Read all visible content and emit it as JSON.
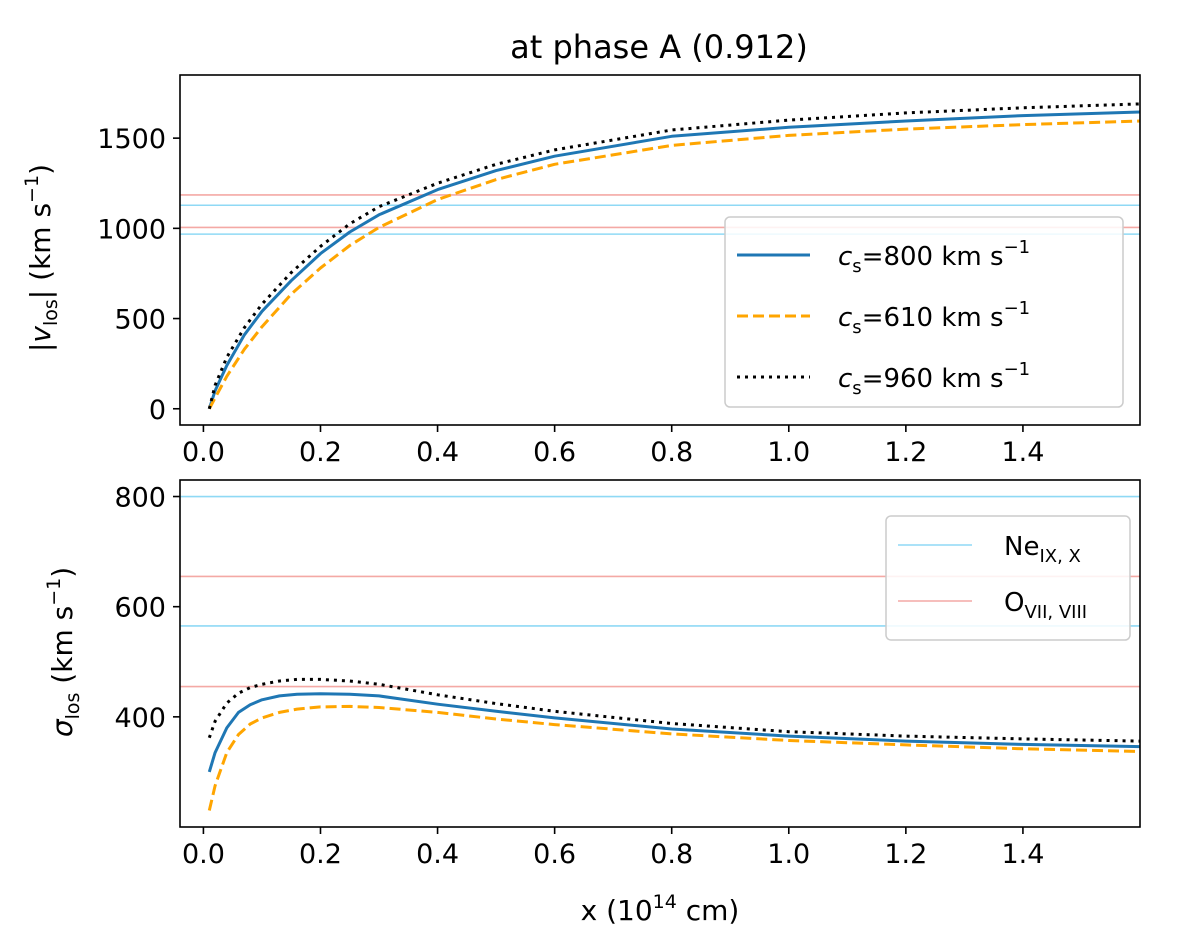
{
  "chart_data": [
    {
      "type": "line",
      "panel": "top",
      "title": "at phase A (0.912)",
      "xlabel": "",
      "ylabel_parts": {
        "open": "|",
        "var": "v",
        "sub": "los",
        "close": "| (km s",
        "sup": "−1",
        "end": ")"
      },
      "xlim": [
        -0.04,
        1.6
      ],
      "ylim": [
        -90,
        1850
      ],
      "xticks": [
        0.0,
        0.2,
        0.4,
        0.6,
        0.8,
        1.0,
        1.2,
        1.4
      ],
      "xtick_labels": [
        "0.0",
        "0.2",
        "0.4",
        "0.6",
        "0.8",
        "1.0",
        "1.2",
        "1.4"
      ],
      "yticks": [
        0,
        500,
        1000,
        1500
      ],
      "ytick_labels": [
        "0",
        "500",
        "1000",
        "1500"
      ],
      "hlines": [
        {
          "y": 1185,
          "color": "#f4a9a5",
          "group": "O"
        },
        {
          "y": 1128,
          "color": "#8fd9f5",
          "group": "Ne"
        },
        {
          "y": 1005,
          "color": "#f4a9a5",
          "group": "O"
        },
        {
          "y": 968,
          "color": "#8fd9f5",
          "group": "Ne"
        }
      ],
      "series": [
        {
          "name": "cs800",
          "color": "#1f77b4",
          "style": "solid",
          "x": [
            0.01,
            0.02,
            0.04,
            0.07,
            0.1,
            0.15,
            0.2,
            0.25,
            0.3,
            0.4,
            0.5,
            0.6,
            0.8,
            1.0,
            1.2,
            1.4,
            1.6
          ],
          "y": [
            0,
            100,
            240,
            410,
            540,
            710,
            860,
            980,
            1075,
            1215,
            1320,
            1400,
            1510,
            1560,
            1595,
            1625,
            1645
          ]
        },
        {
          "name": "cs610",
          "color": "#ffa500",
          "style": "dashed",
          "x": [
            0.01,
            0.02,
            0.04,
            0.07,
            0.1,
            0.15,
            0.2,
            0.25,
            0.3,
            0.4,
            0.5,
            0.6,
            0.8,
            1.0,
            1.2,
            1.4,
            1.6
          ],
          "y": [
            0,
            60,
            180,
            330,
            455,
            635,
            780,
            905,
            1005,
            1160,
            1270,
            1355,
            1460,
            1515,
            1550,
            1575,
            1595
          ]
        },
        {
          "name": "cs960",
          "color": "#000000",
          "style": "dotted",
          "x": [
            0.01,
            0.02,
            0.04,
            0.07,
            0.1,
            0.15,
            0.2,
            0.25,
            0.3,
            0.4,
            0.5,
            0.6,
            0.8,
            1.0,
            1.2,
            1.4,
            1.6
          ],
          "y": [
            0,
            130,
            285,
            450,
            580,
            755,
            900,
            1025,
            1120,
            1250,
            1355,
            1435,
            1545,
            1600,
            1640,
            1668,
            1690
          ]
        }
      ],
      "legend": {
        "position": "lower right",
        "entries": [
          {
            "series": "cs800",
            "var": "c",
            "sub": "s",
            "text": "=800 km s",
            "sup": "−1"
          },
          {
            "series": "cs610",
            "var": "c",
            "sub": "s",
            "text": "=610 km s",
            "sup": "−1"
          },
          {
            "series": "cs960",
            "var": "c",
            "sub": "s",
            "text": "=960 km s",
            "sup": "−1"
          }
        ]
      }
    },
    {
      "type": "line",
      "panel": "bottom",
      "title": "",
      "xlabel_parts": {
        "pre": "x (10",
        "sup": "14",
        "post": " cm)"
      },
      "ylabel_parts": {
        "var": "σ",
        "sub": "los",
        "post": " (km s",
        "sup": "−1",
        "end": ")"
      },
      "xlim": [
        -0.04,
        1.6
      ],
      "ylim": [
        200,
        830
      ],
      "xticks": [
        0.0,
        0.2,
        0.4,
        0.6,
        0.8,
        1.0,
        1.2,
        1.4
      ],
      "xtick_labels": [
        "0.0",
        "0.2",
        "0.4",
        "0.6",
        "0.8",
        "1.0",
        "1.2",
        "1.4"
      ],
      "yticks": [
        400,
        600,
        800
      ],
      "ytick_labels": [
        "400",
        "600",
        "800"
      ],
      "hlines": [
        {
          "y": 800,
          "color": "#8fd9f5",
          "group": "Ne"
        },
        {
          "y": 655,
          "color": "#f4a9a5",
          "group": "O"
        },
        {
          "y": 565,
          "color": "#8fd9f5",
          "group": "Ne"
        },
        {
          "y": 455,
          "color": "#f4a9a5",
          "group": "O"
        }
      ],
      "series": [
        {
          "name": "cs800",
          "color": "#1f77b4",
          "style": "solid",
          "x": [
            0.01,
            0.02,
            0.04,
            0.06,
            0.08,
            0.1,
            0.13,
            0.16,
            0.2,
            0.25,
            0.3,
            0.4,
            0.5,
            0.6,
            0.8,
            1.0,
            1.2,
            1.4,
            1.6
          ],
          "y": [
            300,
            335,
            380,
            408,
            422,
            431,
            438,
            441,
            442,
            441,
            438,
            423,
            410,
            398,
            378,
            365,
            356,
            350,
            346
          ]
        },
        {
          "name": "cs610",
          "color": "#ffa500",
          "style": "dashed",
          "x": [
            0.01,
            0.02,
            0.04,
            0.06,
            0.08,
            0.1,
            0.13,
            0.16,
            0.2,
            0.25,
            0.3,
            0.4,
            0.5,
            0.6,
            0.8,
            1.0,
            1.2,
            1.4,
            1.6
          ],
          "y": [
            230,
            275,
            335,
            368,
            387,
            398,
            408,
            414,
            418,
            419,
            417,
            408,
            396,
            386,
            369,
            357,
            349,
            342,
            337
          ]
        },
        {
          "name": "cs960",
          "color": "#000000",
          "style": "dotted",
          "x": [
            0.01,
            0.02,
            0.04,
            0.06,
            0.08,
            0.1,
            0.13,
            0.16,
            0.2,
            0.25,
            0.3,
            0.4,
            0.5,
            0.6,
            0.8,
            1.0,
            1.2,
            1.4,
            1.6
          ],
          "y": [
            362,
            392,
            425,
            443,
            453,
            459,
            465,
            468,
            468,
            465,
            459,
            440,
            424,
            410,
            388,
            373,
            365,
            360,
            356
          ]
        }
      ],
      "legend": {
        "position": "upper right",
        "entries": [
          {
            "group": "Ne",
            "color": "#8fd9f5",
            "base": "Ne",
            "sub": "IX, X"
          },
          {
            "group": "O",
            "color": "#f4a9a5",
            "base": "O",
            "sub": "VII, VIII"
          }
        ]
      }
    }
  ]
}
